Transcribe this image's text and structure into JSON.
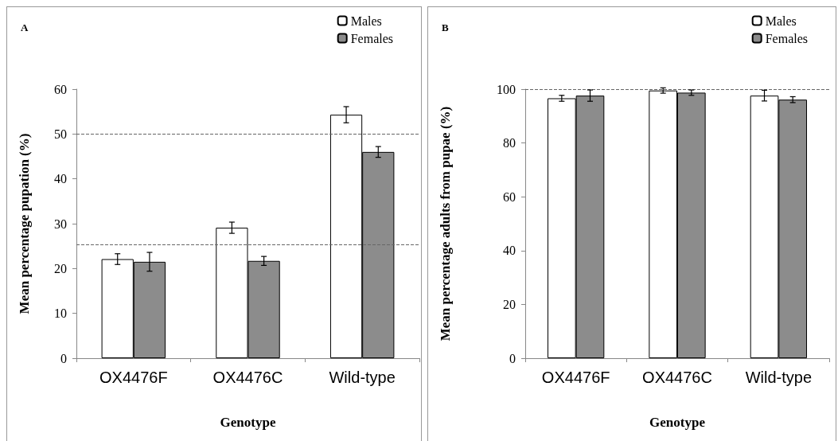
{
  "chart_data": [
    {
      "type": "bar",
      "title": "A",
      "xlabel": "Genotype",
      "ylabel": "Mean percentage pupation (%)",
      "categories": [
        "OX4476F",
        "OX4476C",
        "Wild-type"
      ],
      "series": [
        {
          "name": "Males",
          "color": "#ffffff",
          "values": [
            22.1,
            29.1,
            54.3
          ],
          "errors": [
            1.2,
            1.25,
            1.8
          ]
        },
        {
          "name": "Females",
          "color": "#8c8c8c",
          "values": [
            21.5,
            21.7,
            46.0
          ],
          "errors": [
            2.1,
            1.0,
            1.2
          ]
        }
      ],
      "ylim": [
        0,
        60
      ],
      "yticks": [
        0,
        10,
        20,
        30,
        40,
        50,
        60
      ],
      "grid": false,
      "legend": "top right",
      "ref_lines": [
        {
          "axis": "y",
          "value": 50,
          "color": "#666666",
          "line_style": "dashed"
        },
        {
          "axis": "y",
          "value": 25.4,
          "color": "#666666",
          "line_style": "dashed"
        }
      ]
    },
    {
      "type": "bar",
      "title": "B",
      "xlabel": "Genotype",
      "ylabel": "Mean percentage adults from pupae (%)",
      "categories": [
        "OX4476F",
        "OX4476C",
        "Wild-type"
      ],
      "series": [
        {
          "name": "Males",
          "color": "#ffffff",
          "values": [
            96.6,
            99.5,
            97.6
          ],
          "errors": [
            1.1,
            1.0,
            2.0
          ]
        },
        {
          "name": "Females",
          "color": "#8c8c8c",
          "values": [
            97.6,
            98.7,
            96.1
          ],
          "errors": [
            2.1,
            1.0,
            1.1
          ]
        }
      ],
      "ylim": [
        0,
        100
      ],
      "yticks": [
        0,
        20,
        40,
        60,
        80,
        100
      ],
      "grid": false,
      "legend": "top right",
      "ref_lines": [
        {
          "axis": "y",
          "value": 100,
          "color": "#666666",
          "line_style": "dashed"
        }
      ]
    }
  ]
}
